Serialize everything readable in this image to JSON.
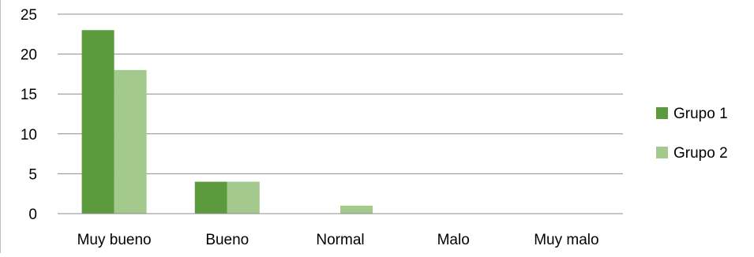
{
  "chart_data": {
    "type": "bar",
    "categories": [
      "Muy bueno",
      "Bueno",
      "Normal",
      "Malo",
      "Muy malo"
    ],
    "series": [
      {
        "name": "Grupo 1",
        "values": [
          23,
          4,
          0,
          0,
          0
        ],
        "color": "#5b9a3d"
      },
      {
        "name": "Grupo 2",
        "values": [
          18,
          4,
          1,
          0,
          0
        ],
        "color": "#a3c98c"
      }
    ],
    "ylim": [
      0,
      25
    ],
    "yticks": [
      0,
      5,
      10,
      15,
      20,
      25
    ],
    "grid": true,
    "legend": "right"
  }
}
